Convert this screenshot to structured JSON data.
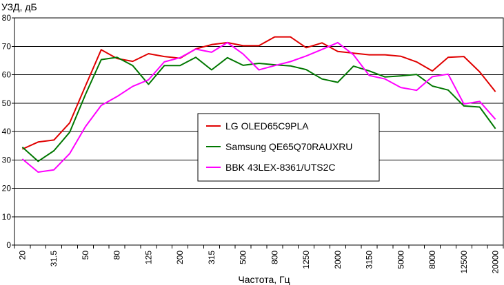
{
  "chart_data": {
    "type": "line",
    "ylabel": "УЗД, дБ",
    "xlabel": "Частота, Гц",
    "ylim": [
      0,
      80
    ],
    "yticks": [
      0,
      10,
      20,
      30,
      40,
      50,
      60,
      70,
      80
    ],
    "grid": true,
    "legend_position": "center-right",
    "x": [
      "20",
      "25",
      "31.5",
      "40",
      "50",
      "63",
      "80",
      "100",
      "125",
      "160",
      "200",
      "250",
      "315",
      "400",
      "500",
      "630",
      "800",
      "1000",
      "1250",
      "1600",
      "2000",
      "2500",
      "3150",
      "4000",
      "5000",
      "6300",
      "8000",
      "10000",
      "12500",
      "16000",
      "20000"
    ],
    "x_tick_labels": [
      "20",
      "",
      "31.5",
      "",
      "50",
      "",
      "80",
      "",
      "125",
      "",
      "200",
      "",
      "315",
      "",
      "500",
      "",
      "800",
      "",
      "1250",
      "",
      "2000",
      "",
      "3150",
      "",
      "5000",
      "",
      "8000",
      "",
      "12500",
      "",
      "20000"
    ],
    "series": [
      {
        "name": "LG OLED65C9PLA",
        "color": "#e00000",
        "values": [
          33.8,
          36.3,
          37.0,
          43.0,
          56.0,
          68.8,
          65.7,
          64.7,
          67.4,
          66.4,
          65.8,
          69.1,
          70.6,
          71.3,
          70.2,
          70.2,
          73.3,
          73.3,
          69.5,
          71.2,
          68.2,
          67.6,
          67.0,
          67.0,
          66.5,
          64.5,
          61.3,
          66.1,
          66.4,
          61.0,
          54.0
        ]
      },
      {
        "name": "Samsung QE65Q70RAUXRU",
        "color": "#007700",
        "values": [
          34.5,
          29.5,
          33.2,
          39.7,
          53.0,
          65.3,
          66.1,
          63.2,
          56.6,
          63.2,
          63.2,
          66.1,
          61.7,
          66.0,
          63.3,
          64.0,
          63.5,
          63.1,
          61.8,
          58.5,
          57.3,
          63.0,
          61.3,
          59.2,
          59.6,
          60.1,
          56.0,
          54.6,
          49.0,
          48.6,
          41.0
        ]
      },
      {
        "name": "BBK 43LEX-8361/UTS2C",
        "color": "#ff00ff",
        "values": [
          30.3,
          25.7,
          26.5,
          32.2,
          41.7,
          49.2,
          52.3,
          55.9,
          58.2,
          64.5,
          66.0,
          69.0,
          67.9,
          71.3,
          67.3,
          61.7,
          63.2,
          64.6,
          66.6,
          68.9,
          71.3,
          67.0,
          59.7,
          58.5,
          55.5,
          54.5,
          59.3,
          60.2,
          49.7,
          50.6,
          44.3
        ]
      }
    ]
  }
}
